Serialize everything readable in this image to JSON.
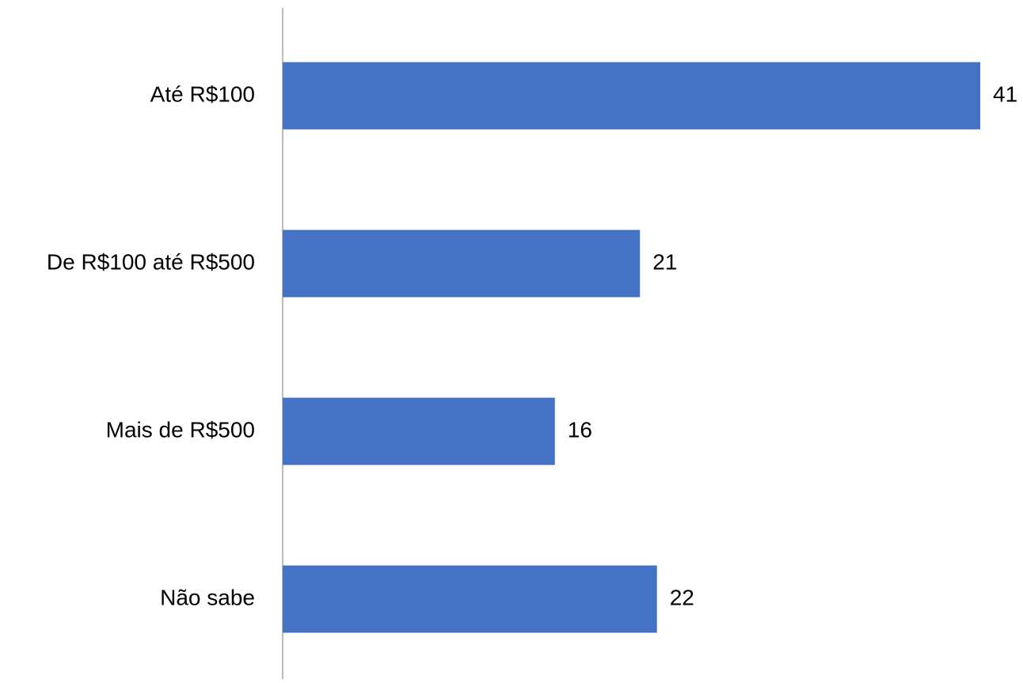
{
  "chart_data": {
    "type": "bar",
    "orientation": "horizontal",
    "categories": [
      "Até R$100",
      "De R$100 até R$500",
      "Mais de R$500",
      "Não sabe"
    ],
    "values": [
      41,
      21,
      16,
      22
    ],
    "data_labels": [
      "41",
      "21",
      "16",
      "22"
    ],
    "title": "",
    "xlabel": "",
    "ylabel": "",
    "xlim": [
      0,
      41
    ],
    "grid": false,
    "legend": "none",
    "bar_color": "#4472C4",
    "axis_color": "#A6A6A6"
  }
}
